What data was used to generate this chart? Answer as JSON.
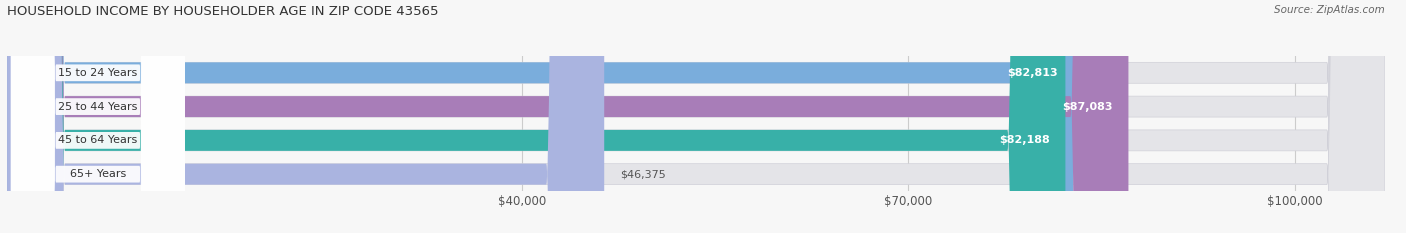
{
  "title": "HOUSEHOLD INCOME BY HOUSEHOLDER AGE IN ZIP CODE 43565",
  "source": "Source: ZipAtlas.com",
  "categories": [
    "15 to 24 Years",
    "25 to 44 Years",
    "45 to 64 Years",
    "65+ Years"
  ],
  "values": [
    82813,
    87083,
    82188,
    46375
  ],
  "bar_colors": [
    "#7aaddc",
    "#a87db8",
    "#38b0a8",
    "#aab4e0"
  ],
  "bar_track_color": "#e4e4e8",
  "value_labels": [
    "$82,813",
    "$87,083",
    "$82,188",
    "$46,375"
  ],
  "xmin": 0,
  "xmax": 107000,
  "xticks": [
    40000,
    70000,
    100000
  ],
  "xtick_labels": [
    "$40,000",
    "$70,000",
    "$100,000"
  ],
  "background_color": "#f7f7f7",
  "bar_height": 0.62,
  "figsize": [
    14.06,
    2.33
  ],
  "dpi": 100
}
